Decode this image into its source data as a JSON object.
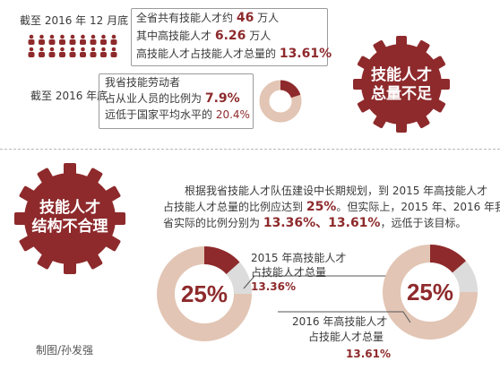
{
  "top": {
    "date1": "截至 2016 年 12 月底",
    "line1_pre": "全省共有技能人才约 ",
    "line1_num": "46",
    "line1_post": " 万人",
    "line2_pre": "其中高技能人才 ",
    "line2_num": "6.26",
    "line2_post": " 万人",
    "line3_pre": "高技能人才占技能人才总量的 ",
    "line3_num": "13.61%",
    "date2": "截至 2016 年底",
    "line4": "我省技能劳动者",
    "line5_pre": "占从业人员的比例为 ",
    "line5_num": "7.9%",
    "line6_pre": "远低于国家平均水平的 ",
    "line6_num": "20.4%",
    "gear1_line1": "技能人才",
    "gear1_line2": "总量不足"
  },
  "bottom": {
    "gear2_line1": "技能人才",
    "gear2_line2": "结构不合理",
    "para1": "根据我省技能人才队伍建设中长期规划，到 2015 年高技能人才",
    "para2_pre": "占技能人才总量的比例应达到 ",
    "para2_num": "25%",
    "para2_post": "。但实际上，2015 年、2016 年我",
    "para3_pre": "省实际的比例分别为 ",
    "para3_num": "13.36%、13.61%",
    "para3_post": "，远低于该目标。",
    "donut1_pct": "25%",
    "donut1_label1": "2015 年高技能人才",
    "donut1_label2": "占技能人才总量",
    "donut1_value": "13.36%",
    "donut2_pct": "25%",
    "donut2_label1": "2016 年高技能人才",
    "donut2_label2": "占技能人才总量",
    "donut2_value": "13.61%",
    "credit": "制图/孙发强"
  },
  "colors": {
    "dark_red": "#8e2a2c",
    "tan": "#e2c5b4",
    "gray": "#dcdcdc"
  },
  "icon_names": [
    "people-icon",
    "gear-icon",
    "donut-icon"
  ]
}
